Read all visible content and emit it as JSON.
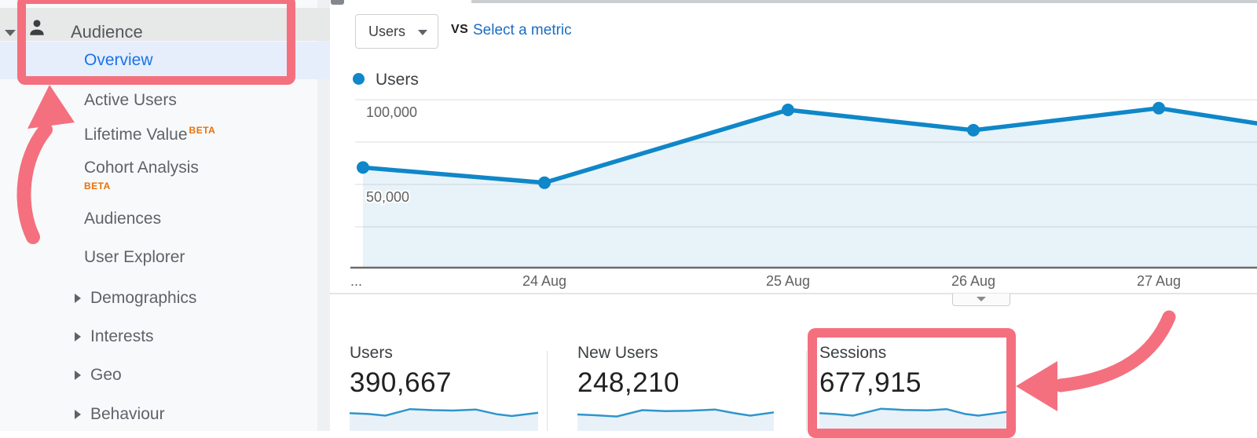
{
  "app": {
    "title": "Google Analytics — Audience Overview"
  },
  "colors": {
    "accent_pink": "#f4707f",
    "chart_blue": "#0f87c8",
    "chart_fill": "rgba(15,135,200,0.10)",
    "spark_fill": "#e9f1f8",
    "link_blue": "#1a6dc2",
    "active_item_blue": "#1a73e8",
    "beta_orange": "#e8710a",
    "active_row_bg": "#e6eefc",
    "section_row_bg": "#e7e8e8"
  },
  "sidebar": {
    "section": {
      "label": "Audience",
      "icon": "person-icon",
      "expanded": true
    },
    "items": [
      {
        "label": "Overview",
        "active": true
      },
      {
        "label": "Active Users"
      },
      {
        "label": "Lifetime Value",
        "beta": "BETA",
        "beta_position": "superscript"
      },
      {
        "label": "Cohort Analysis",
        "beta": "BETA",
        "beta_position": "below"
      },
      {
        "label": "Audiences"
      },
      {
        "label": "User Explorer"
      },
      {
        "label": "Demographics",
        "chevron": true
      },
      {
        "label": "Interests",
        "chevron": true
      },
      {
        "label": "Geo",
        "chevron": true
      },
      {
        "label": "Behaviour",
        "chevron": true
      }
    ]
  },
  "toolbar": {
    "metric_selector": "Users",
    "vs_label": "VS",
    "compare_link": "Select a metric"
  },
  "legend": {
    "series": "Users"
  },
  "chart_data": {
    "type": "area",
    "title": "Users over time",
    "series": [
      {
        "name": "Users",
        "values": [
          60000,
          51000,
          94000,
          82000,
          95000
        ],
        "right_edge_value": 86000
      }
    ],
    "x_labels": [
      "...",
      "24 Aug",
      "25 Aug",
      "26 Aug",
      "27 Aug"
    ],
    "ylabel": "",
    "xlabel": "",
    "ylim": [
      0,
      102500
    ],
    "y_ticks": [
      {
        "label": "50,000",
        "value": 50000
      },
      {
        "label": "100,000",
        "value": 100000
      }
    ],
    "gridline_values": [
      25000,
      50000,
      75000,
      100000
    ],
    "grid": true,
    "legend_position": "top-left"
  },
  "cards": [
    {
      "label": "Users",
      "value": "390,667",
      "spark": [
        [
          0,
          0.4
        ],
        [
          0.1,
          0.44
        ],
        [
          0.19,
          0.52
        ],
        [
          0.32,
          0.2
        ],
        [
          0.44,
          0.25
        ],
        [
          0.55,
          0.27
        ],
        [
          0.67,
          0.22
        ],
        [
          0.78,
          0.45
        ],
        [
          0.86,
          0.54
        ],
        [
          1,
          0.38
        ]
      ]
    },
    {
      "label": "New Users",
      "value": "248,210",
      "spark": [
        [
          0,
          0.46
        ],
        [
          0.09,
          0.5
        ],
        [
          0.2,
          0.56
        ],
        [
          0.33,
          0.25
        ],
        [
          0.45,
          0.3
        ],
        [
          0.57,
          0.28
        ],
        [
          0.7,
          0.22
        ],
        [
          0.8,
          0.4
        ],
        [
          0.88,
          0.52
        ],
        [
          1,
          0.36
        ]
      ]
    },
    {
      "label": "Sessions",
      "value": "677,915",
      "highlighted": true,
      "spark": [
        [
          0,
          0.4
        ],
        [
          0.08,
          0.44
        ],
        [
          0.18,
          0.52
        ],
        [
          0.33,
          0.18
        ],
        [
          0.45,
          0.24
        ],
        [
          0.58,
          0.26
        ],
        [
          0.68,
          0.2
        ],
        [
          0.78,
          0.44
        ],
        [
          0.85,
          0.52
        ],
        [
          1,
          0.34
        ]
      ]
    }
  ],
  "annotations": {
    "color": "#f4707f",
    "items": [
      "box-around-audience-overview-nav",
      "arrow-pointing-to-overview-nav",
      "box-around-sessions-card",
      "arrow-pointing-to-sessions-card"
    ]
  }
}
